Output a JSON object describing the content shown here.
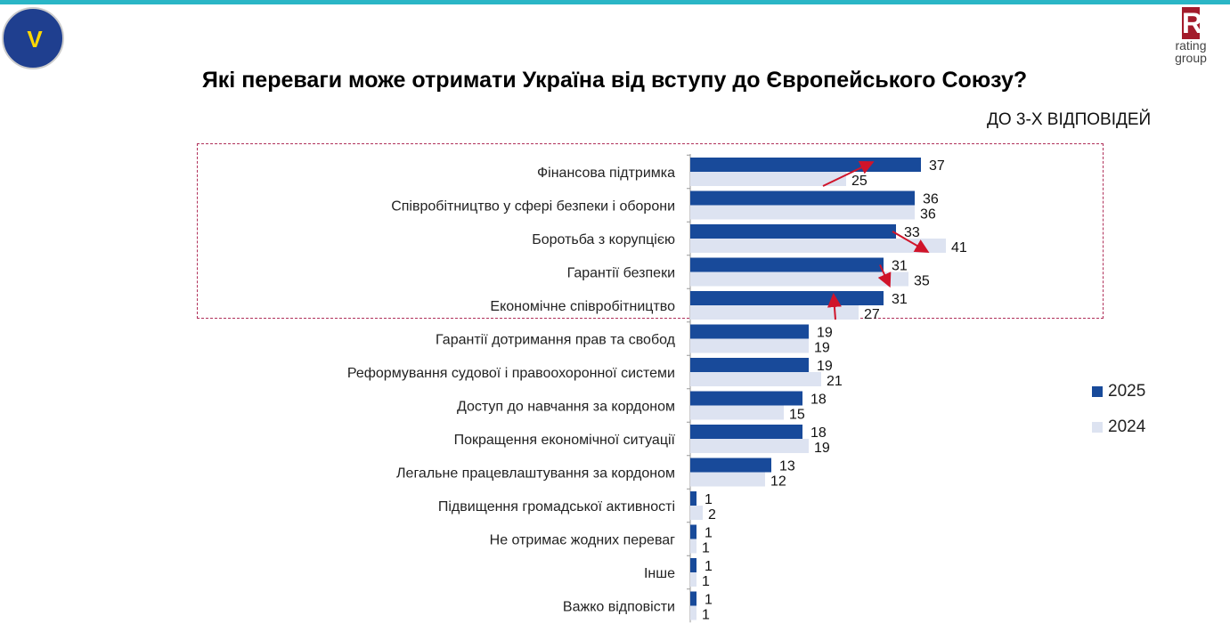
{
  "header": {
    "logo_left": "EUROPEAN UNION EUAM UKRAINE",
    "logo_right": [
      "R",
      "rating",
      "group"
    ]
  },
  "colors": {
    "s2025": "#184a9a",
    "s2024": "#dde3f1",
    "arrow": "#d0142a"
  },
  "chart_data": {
    "type": "bar",
    "orientation": "horizontal",
    "title": "Які переваги може отримати Україна від вступу до Європейського Союзу?",
    "subtitle": "ДО 3-Х ВІДПОВІДЕЙ",
    "categories": [
      "Фінансова підтримка",
      "Співробітництво у сфері безпеки і оборони",
      "Боротьба з корупцією",
      "Гарантії безпеки",
      "Економічне співробітництво",
      "Гарантії дотримання прав та свобод",
      "Реформування судової і правоохоронної системи",
      "Доступ до навчання за кордоном",
      "Покращення економічної ситуації",
      "Легальне працевлаштування за кордоном",
      "Підвищення громадської активності",
      "Не отримає жодних переваг",
      "Інше",
      "Важко відповісти"
    ],
    "series": [
      {
        "name": "2025",
        "values": [
          37,
          36,
          33,
          31,
          31,
          19,
          19,
          18,
          18,
          13,
          1,
          1,
          1,
          1
        ]
      },
      {
        "name": "2024",
        "values": [
          25,
          36,
          41,
          35,
          27,
          19,
          21,
          15,
          19,
          12,
          2,
          1,
          1,
          1
        ]
      }
    ],
    "trend_arrows": [
      "up",
      null,
      "down",
      "down",
      "up",
      null,
      null,
      null,
      null,
      null,
      null,
      null,
      null,
      null
    ],
    "highlighted_rows": 5,
    "legend": "right",
    "xlim": [
      0,
      42
    ]
  }
}
